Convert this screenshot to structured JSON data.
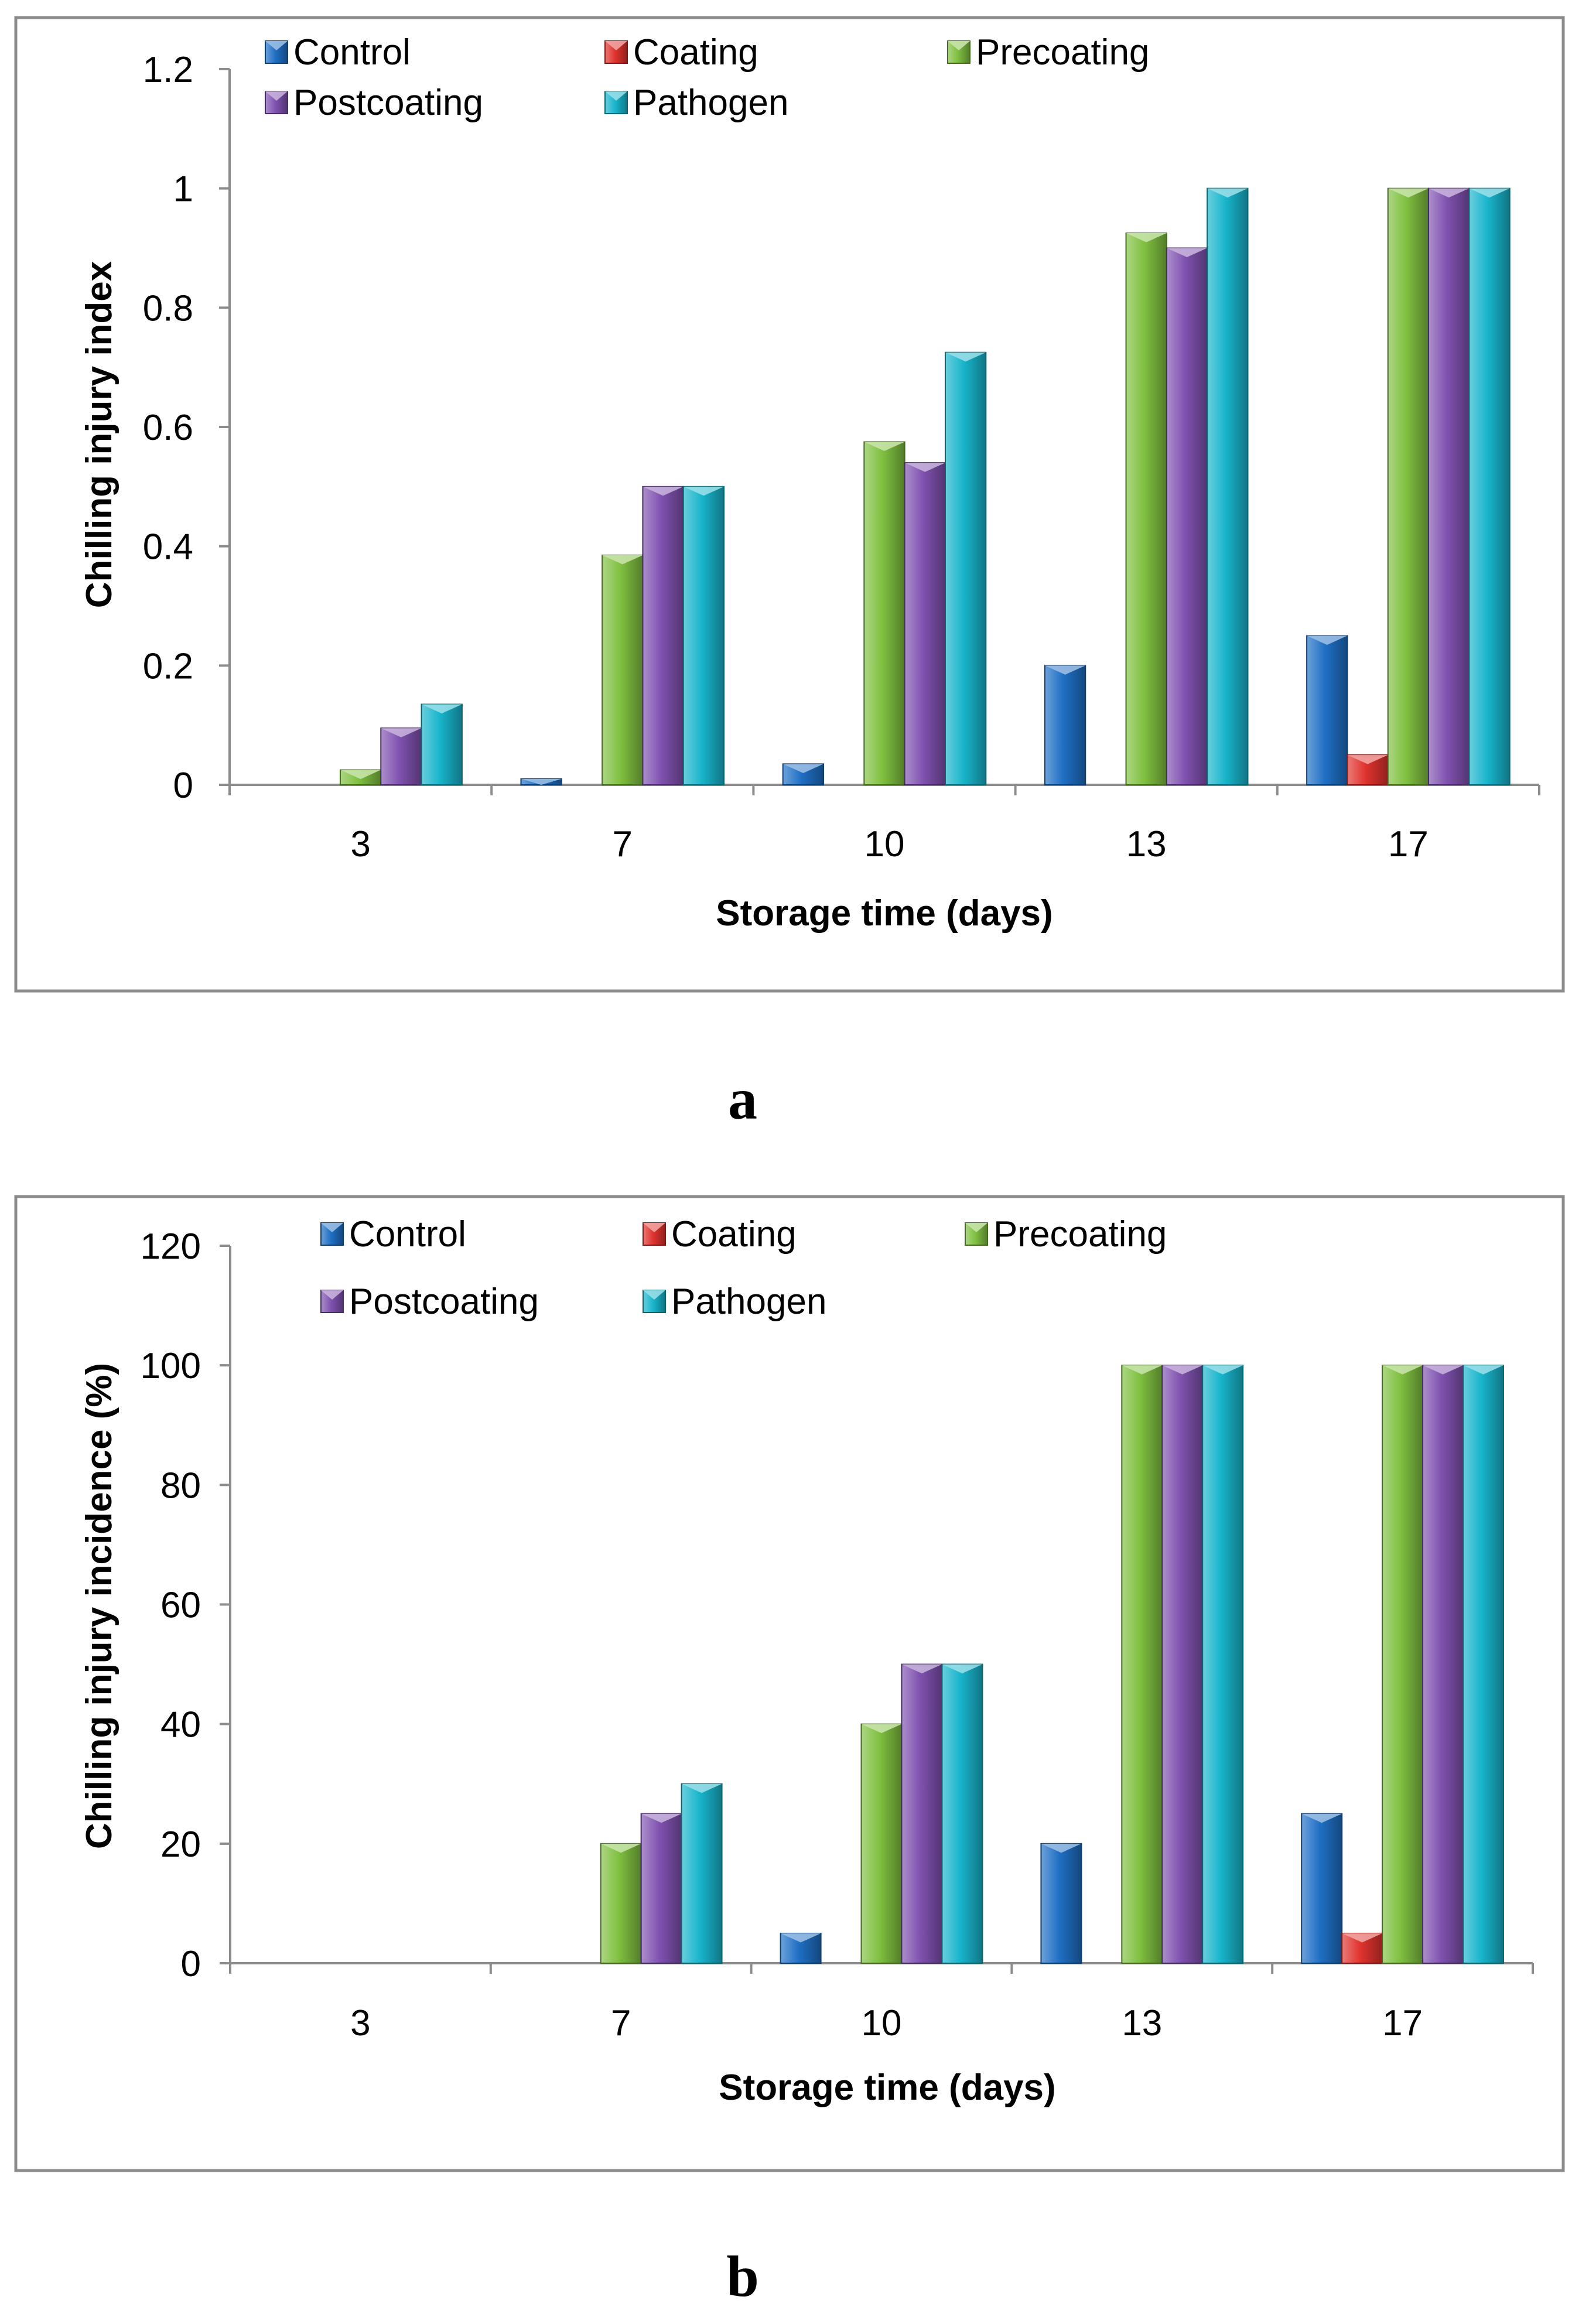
{
  "figure": {
    "panel_labels": [
      "a",
      "b"
    ]
  },
  "chart_data": [
    {
      "type": "bar",
      "panel": "a",
      "title": "",
      "xlabel": "Storage time (days)",
      "ylabel": "Chilling injury index",
      "categories": [
        "3",
        "7",
        "10",
        "13",
        "17"
      ],
      "ylim": [
        0,
        1.2
      ],
      "yticks": [
        "0",
        "0.2",
        "0.4",
        "0.6",
        "0.8",
        "1",
        "1.2"
      ],
      "grid": false,
      "legend_position": "top",
      "series": [
        {
          "name": "Control",
          "color": "#1f6fc4",
          "values": [
            0,
            0.01,
            0.035,
            0.2,
            0.25
          ]
        },
        {
          "name": "Coating",
          "color": "#e0332e",
          "values": [
            0,
            0,
            0,
            0,
            0.05
          ]
        },
        {
          "name": "Precoating",
          "color": "#80c040",
          "values": [
            0.025,
            0.385,
            0.575,
            0.925,
            1.0
          ]
        },
        {
          "name": "Postcoating",
          "color": "#8052b0",
          "values": [
            0.095,
            0.5,
            0.54,
            0.9,
            1.0
          ]
        },
        {
          "name": "Pathogen",
          "color": "#18b5cc",
          "values": [
            0.135,
            0.5,
            0.725,
            1.0,
            1.0
          ]
        }
      ]
    },
    {
      "type": "bar",
      "panel": "b",
      "title": "",
      "xlabel": "Storage time (days)",
      "ylabel": "Chilling injury incidence (%)",
      "categories": [
        "3",
        "7",
        "10",
        "13",
        "17"
      ],
      "ylim": [
        0,
        120
      ],
      "yticks": [
        "0",
        "20",
        "40",
        "60",
        "80",
        "100",
        "120"
      ],
      "grid": false,
      "legend_position": "top",
      "series": [
        {
          "name": "Control",
          "color": "#1f6fc4",
          "values": [
            0,
            0,
            5,
            20,
            25
          ]
        },
        {
          "name": "Coating",
          "color": "#e0332e",
          "values": [
            0,
            0,
            0,
            0,
            5
          ]
        },
        {
          "name": "Precoating",
          "color": "#80c040",
          "values": [
            0,
            20,
            40,
            100,
            100
          ]
        },
        {
          "name": "Postcoating",
          "color": "#8052b0",
          "values": [
            0,
            25,
            50,
            100,
            100
          ]
        },
        {
          "name": "Pathogen",
          "color": "#18b5cc",
          "values": [
            0,
            30,
            50,
            100,
            100
          ]
        }
      ]
    }
  ]
}
